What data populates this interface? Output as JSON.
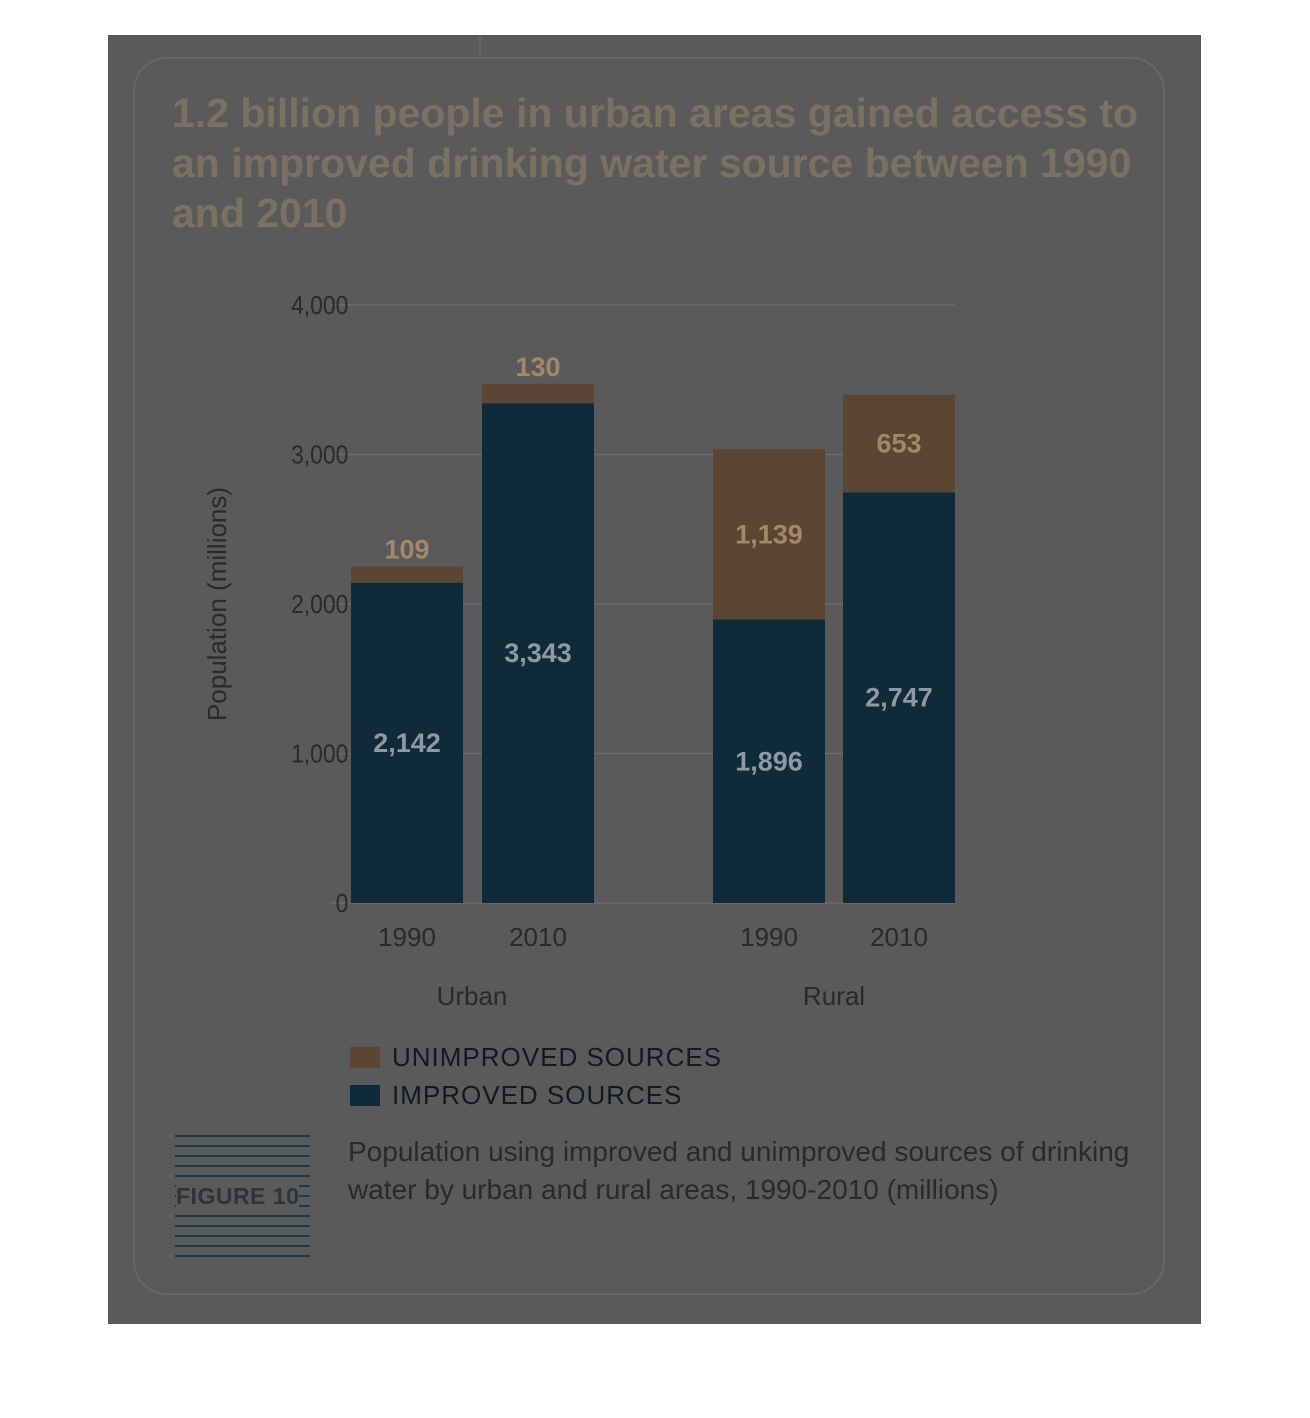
{
  "title": "1.2 billion people in urban areas gained access to an improved drinking water source between 1990 and 2010",
  "figure_label": "FIGURE 10",
  "caption": "Population using improved and unimproved sources of drinking water by urban and rural areas, 1990-2010 (millions)",
  "colors": {
    "improved": "#102a39",
    "unimproved": "#5a4632",
    "improved_label": "#8d99a3",
    "unimproved_label": "#a3876a",
    "axis_text": "#2a2a2a",
    "grid": "#6a6a6a"
  },
  "chart_data": {
    "type": "bar",
    "stacked": true,
    "ylabel": "Population (millions)",
    "ylim": [
      0,
      4000
    ],
    "yticks": [
      0,
      1000,
      2000,
      3000,
      4000
    ],
    "ytick_labels": [
      "0",
      "1,000",
      "2,000",
      "3,000",
      "4,000"
    ],
    "groups": [
      "Urban",
      "Rural"
    ],
    "categories": [
      "1990",
      "2010",
      "1990",
      "2010"
    ],
    "category_group": [
      0,
      0,
      1,
      1
    ],
    "series": [
      {
        "name": "IMPROVED SOURCES",
        "values": [
          2142,
          3343,
          1896,
          2747
        ],
        "labels": [
          "2,142",
          "3,343",
          "1,896",
          "2,747"
        ]
      },
      {
        "name": "UNIMPROVED SOURCES",
        "values": [
          109,
          130,
          1139,
          653
        ],
        "labels": [
          "109",
          "130",
          "1,139",
          "653"
        ]
      }
    ],
    "legend": [
      "UNIMPROVED SOURCES",
      "IMPROVED SOURCES"
    ],
    "grid": true,
    "legend_position": "bottom-left"
  }
}
